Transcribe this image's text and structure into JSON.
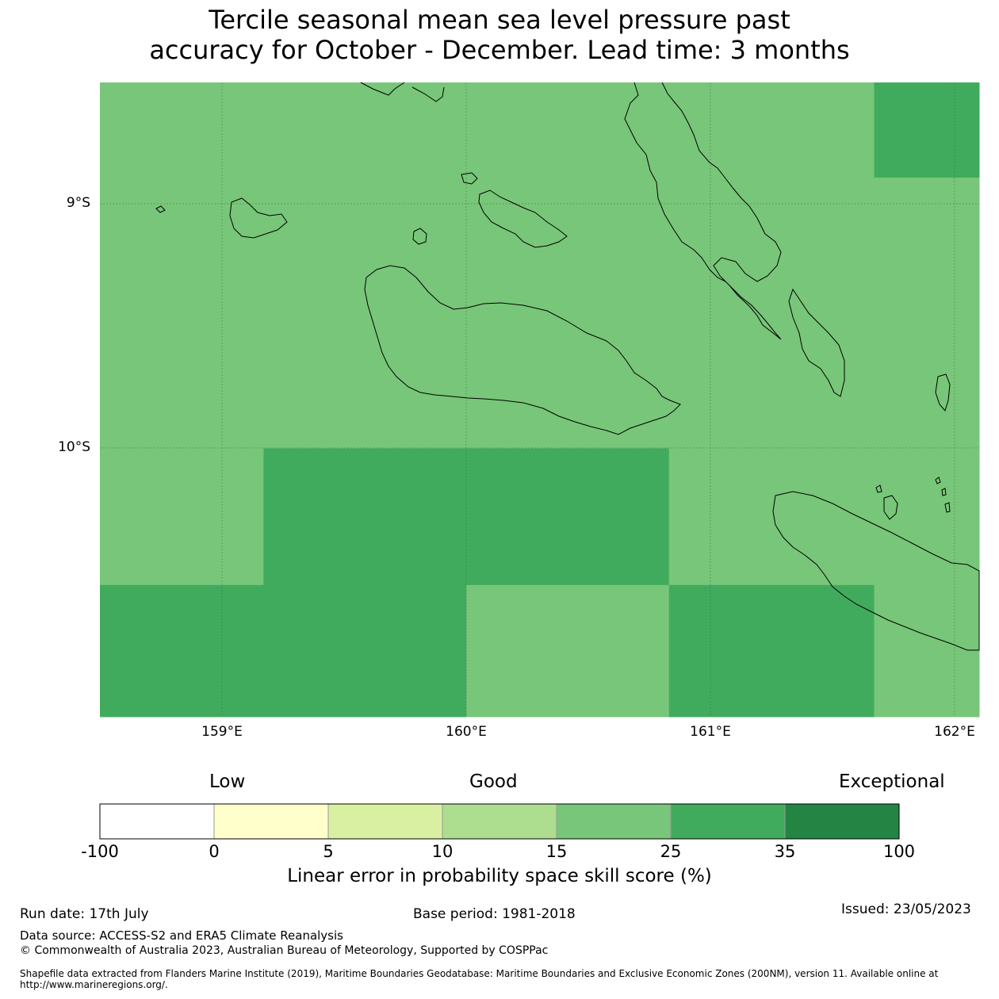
{
  "title_line1": "Tercile seasonal mean sea level pressure past",
  "title_line2": "accuracy for October - December. Lead time: 3 months",
  "map": {
    "lon_range": [
      158.5,
      162.1
    ],
    "lat_range": [
      -11.1,
      -8.5
    ],
    "lat_ticks": [
      "9°S",
      "10°S"
    ],
    "lon_ticks": [
      "159°E",
      "160°E",
      "161°E",
      "162°E"
    ],
    "cell_colors": {
      "15-25": "#78c679",
      "25-35": "#41ab5d"
    },
    "cells": [
      {
        "lon": [
          158.5,
          161.67
        ],
        "lat": [
          -8.89,
          -8.5
        ],
        "class": "15-25"
      },
      {
        "lon": [
          161.67,
          162.1
        ],
        "lat": [
          -8.89,
          -8.5
        ],
        "class": "25-35"
      },
      {
        "lon": [
          158.5,
          162.1
        ],
        "lat": [
          -10.0,
          -8.89
        ],
        "class": "15-25"
      },
      {
        "lon": [
          158.5,
          159.17
        ],
        "lat": [
          -10.56,
          -10.0
        ],
        "class": "15-25"
      },
      {
        "lon": [
          159.17,
          160.83
        ],
        "lat": [
          -10.56,
          -10.0
        ],
        "class": "25-35"
      },
      {
        "lon": [
          160.83,
          162.1
        ],
        "lat": [
          -10.56,
          -10.0
        ],
        "class": "15-25"
      },
      {
        "lon": [
          158.5,
          160.0
        ],
        "lat": [
          -11.1,
          -10.56
        ],
        "class": "25-35"
      },
      {
        "lon": [
          160.0,
          160.83
        ],
        "lat": [
          -11.1,
          -10.56
        ],
        "class": "15-25"
      },
      {
        "lon": [
          160.83,
          161.67
        ],
        "lat": [
          -11.1,
          -10.56
        ],
        "class": "25-35"
      },
      {
        "lon": [
          161.67,
          162.1
        ],
        "lat": [
          -11.1,
          -10.56
        ],
        "class": "15-25"
      }
    ]
  },
  "colorbar": {
    "words": [
      "Low",
      "Good",
      "Exceptional"
    ],
    "ticks": [
      "-100",
      "0",
      "5",
      "10",
      "15",
      "25",
      "35",
      "100"
    ],
    "colors": [
      "#ffffff",
      "#ffffcc",
      "#d9f0a3",
      "#addd8e",
      "#78c679",
      "#41ab5d",
      "#238443"
    ],
    "label": "Linear error in probability space skill score (%)"
  },
  "footer": {
    "run_date": "Run date: 17th July",
    "base_period": "Base period: 1981-2018",
    "issued": "Issued: 23/05/2023",
    "data_source": "Data source: ACCESS-S2 and ERA5 Climate Reanalysis",
    "copyright": "© Commonwealth of Australia 2023, Australian Bureau of Meteorology, Supported by COSPPac",
    "shapefile": "Shapefile data extracted from Flanders Marine Institute (2019), Maritime Boundaries Geodatabase: Maritime Boundaries and Exclusive Economic Zones (200NM), version 11. Available online at http://www.marineregions.org/."
  }
}
